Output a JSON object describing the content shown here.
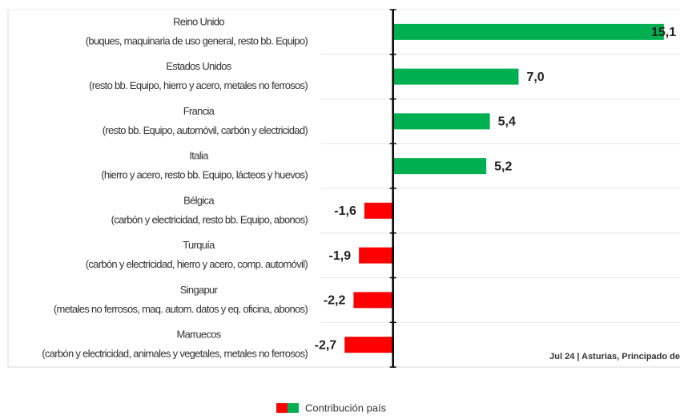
{
  "chart_data": {
    "type": "bar",
    "orientation": "horizontal",
    "categories": [
      [
        "Reino Unido",
        "(buques, maquinaria de uso general, resto bb. Equipo)"
      ],
      [
        "Estados Unidos",
        "(resto bb. Equipo, hierro y acero, metales no ferrosos)"
      ],
      [
        "Francia",
        "(resto bb. Equipo, automóvil, carbón y electricidad)"
      ],
      [
        "Italia",
        "(hierro y acero, resto bb. Equipo, lácteos y huevos)"
      ],
      [
        "Bélgica",
        "(carbón y electricidad, resto bb. Equipo, abonos)"
      ],
      [
        "Turquía",
        "(carbón y electricidad, hierro y acero, comp. automóvil)"
      ],
      [
        "Singapur",
        "(metales no ferrosos, maq. autom. datos y eq. oficina, abonos)"
      ],
      [
        "Marruecos",
        "(carbón y electricidad, animales y vegetales, metales no ferrosos)"
      ]
    ],
    "series": [
      {
        "name": "Contribución país",
        "color": "#00b050",
        "negative_color": "#ff0000",
        "values": [
          15.1,
          7.0,
          5.4,
          5.2,
          -1.6,
          -1.9,
          -2.2,
          -2.7
        ],
        "value_labels": [
          "15,1",
          "7,0",
          "5,4",
          "5,2",
          "-1,6",
          "-1,9",
          "-2,2",
          "-2,7"
        ]
      }
    ],
    "xlim": [
      -3,
      16
    ],
    "annotation": "Jul 24 | Asturias, Principado de"
  }
}
